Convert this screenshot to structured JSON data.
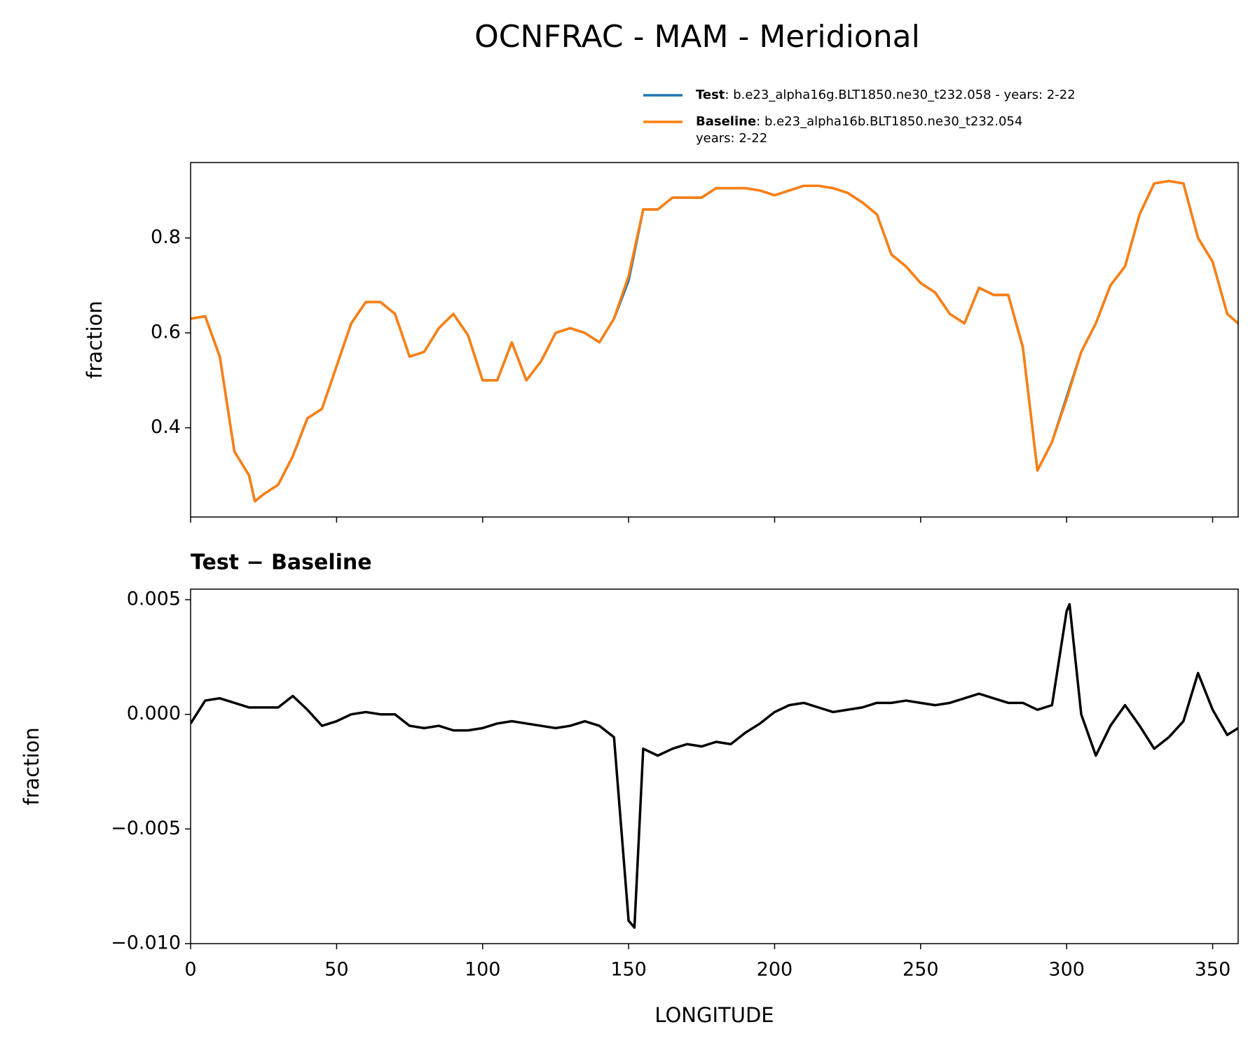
{
  "chart_data": [
    {
      "type": "line",
      "title": "OCNFRAC - MAM - Meridional",
      "ylabel": "fraction",
      "x": [
        0,
        5,
        10,
        15,
        20,
        22,
        25,
        30,
        35,
        40,
        45,
        50,
        55,
        60,
        65,
        70,
        75,
        80,
        85,
        90,
        95,
        100,
        105,
        110,
        115,
        120,
        125,
        130,
        135,
        140,
        145,
        150,
        155,
        160,
        165,
        170,
        175,
        180,
        185,
        190,
        195,
        200,
        205,
        210,
        215,
        220,
        225,
        230,
        235,
        240,
        245,
        250,
        255,
        260,
        265,
        270,
        275,
        280,
        285,
        290,
        295,
        300,
        305,
        310,
        315,
        320,
        325,
        330,
        335,
        340,
        345,
        350,
        355,
        358.75
      ],
      "series": [
        {
          "name": "Test",
          "description": [
            ": b.e23_alpha16g.BLT1850.ne30_t232.058 - years: 2-22"
          ],
          "color": "#1f77b4",
          "values": [
            0.63,
            0.635,
            0.55,
            0.35,
            0.3,
            0.245,
            0.26,
            0.28,
            0.34,
            0.42,
            0.44,
            0.53,
            0.62,
            0.665,
            0.665,
            0.64,
            0.55,
            0.56,
            0.61,
            0.64,
            0.595,
            0.5,
            0.5,
            0.58,
            0.5,
            0.54,
            0.6,
            0.61,
            0.6,
            0.58,
            0.63,
            0.71,
            0.86,
            0.86,
            0.885,
            0.885,
            0.885,
            0.905,
            0.905,
            0.905,
            0.9,
            0.89,
            0.9,
            0.91,
            0.91,
            0.905,
            0.895,
            0.875,
            0.85,
            0.765,
            0.74,
            0.705,
            0.685,
            0.64,
            0.62,
            0.695,
            0.68,
            0.68,
            0.57,
            0.31,
            0.37,
            0.465,
            0.56,
            0.62,
            0.7,
            0.74,
            0.85,
            0.915,
            0.92,
            0.915,
            0.8,
            0.75,
            0.64,
            0.62
          ]
        },
        {
          "name": "Baseline",
          "description": [
            ": b.e23_alpha16b.BLT1850.ne30_t232.054",
            "years: 2-22"
          ],
          "color": "#ff7f0e",
          "values": [
            0.63,
            0.635,
            0.55,
            0.35,
            0.3,
            0.245,
            0.26,
            0.28,
            0.34,
            0.42,
            0.44,
            0.53,
            0.62,
            0.665,
            0.665,
            0.64,
            0.55,
            0.56,
            0.61,
            0.64,
            0.595,
            0.5,
            0.5,
            0.58,
            0.5,
            0.54,
            0.6,
            0.61,
            0.6,
            0.58,
            0.63,
            0.72,
            0.86,
            0.86,
            0.885,
            0.885,
            0.885,
            0.905,
            0.905,
            0.905,
            0.9,
            0.89,
            0.9,
            0.91,
            0.91,
            0.905,
            0.895,
            0.875,
            0.85,
            0.765,
            0.74,
            0.705,
            0.685,
            0.64,
            0.62,
            0.695,
            0.68,
            0.68,
            0.57,
            0.31,
            0.37,
            0.46,
            0.56,
            0.62,
            0.7,
            0.74,
            0.85,
            0.915,
            0.92,
            0.915,
            0.8,
            0.75,
            0.64,
            0.62
          ]
        }
      ],
      "xlim": [
        0,
        358.75
      ],
      "xticks": [
        0,
        50,
        100,
        150,
        200,
        250,
        300,
        350
      ],
      "xtick_labels": false,
      "ylim": [
        0.212,
        0.959
      ],
      "yticks": [
        0.4,
        0.6,
        0.8
      ],
      "legend": "upper right"
    },
    {
      "type": "line",
      "title": "Test − Baseline",
      "ylabel": "fraction",
      "xlabel": "LONGITUDE",
      "x": [
        0,
        5,
        10,
        15,
        20,
        25,
        30,
        35,
        40,
        45,
        50,
        55,
        60,
        65,
        70,
        75,
        80,
        85,
        90,
        95,
        100,
        105,
        110,
        115,
        120,
        125,
        130,
        135,
        140,
        145,
        150,
        152,
        155,
        160,
        165,
        170,
        175,
        180,
        185,
        190,
        195,
        200,
        205,
        210,
        215,
        220,
        225,
        230,
        235,
        240,
        245,
        250,
        255,
        260,
        265,
        270,
        275,
        280,
        285,
        290,
        295,
        300,
        301,
        305,
        310,
        315,
        320,
        325,
        330,
        335,
        340,
        345,
        350,
        355,
        358.75
      ],
      "series": [
        {
          "color": "#000000",
          "values": [
            -0.0004,
            0.0006,
            0.0007,
            0.0005,
            0.0003,
            0.0003,
            0.0003,
            0.0008,
            0.0002,
            -0.0005,
            -0.0003,
            0.0,
            0.0001,
            0.0,
            0.0,
            -0.0005,
            -0.0006,
            -0.0005,
            -0.0007,
            -0.0007,
            -0.0006,
            -0.0004,
            -0.0003,
            -0.0004,
            -0.0005,
            -0.0006,
            -0.0005,
            -0.0003,
            -0.0005,
            -0.001,
            -0.009,
            -0.0093,
            -0.0015,
            -0.0018,
            -0.0015,
            -0.0013,
            -0.0014,
            -0.0012,
            -0.0013,
            -0.0008,
            -0.0004,
            0.0001,
            0.0004,
            0.0005,
            0.0003,
            0.0001,
            0.0002,
            0.0003,
            0.0005,
            0.0005,
            0.0006,
            0.0005,
            0.0004,
            0.0005,
            0.0007,
            0.0009,
            0.0007,
            0.0005,
            0.0005,
            0.0002,
            0.0004,
            0.0045,
            0.0048,
            0.0,
            -0.0018,
            -0.0005,
            0.0004,
            -0.0005,
            -0.0015,
            -0.001,
            -0.0003,
            0.0018,
            0.0002,
            -0.0009,
            -0.0006
          ]
        }
      ],
      "xlim": [
        0,
        358.75
      ],
      "xticks": [
        0,
        50,
        100,
        150,
        200,
        250,
        300,
        350
      ],
      "ylim": [
        -0.01,
        0.00546
      ],
      "yticks": [
        {
          "value": -0.01,
          "label": "−0.010"
        },
        {
          "value": -0.005,
          "label": "−0.005"
        },
        {
          "value": 0,
          "label": "0.000"
        },
        0.005
      ]
    }
  ]
}
